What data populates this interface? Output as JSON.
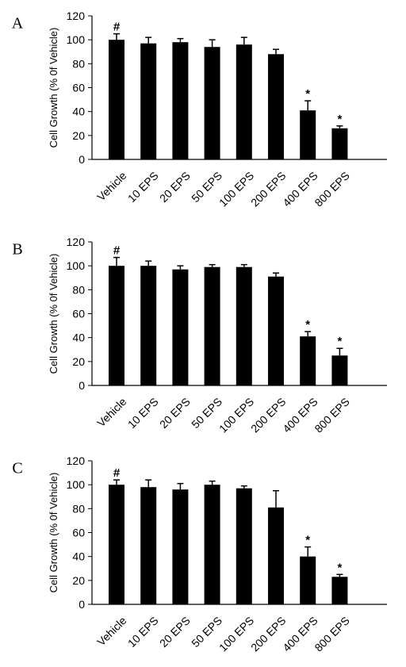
{
  "chart_data": [
    {
      "type": "bar",
      "panel": "A",
      "categories": [
        "Vehicle",
        "10 EPS",
        "20 EPS",
        "50 EPS",
        "100 EPS",
        "200 EPS",
        "400 EPS",
        "800 EPS"
      ],
      "series": [
        {
          "values": [
            100,
            97,
            98,
            94,
            96,
            88,
            41,
            26
          ]
        }
      ],
      "error_upper": [
        5,
        5,
        3,
        6,
        6,
        4,
        8,
        2
      ],
      "annotations": [
        "#",
        "",
        "",
        "",
        "",
        "",
        "*",
        "*"
      ],
      "ylabel": "Cell Growth (% 0f Vehicle)",
      "ylim": [
        0,
        120
      ],
      "yticks": [
        0,
        20,
        40,
        60,
        80,
        100,
        120
      ],
      "color": "#000000",
      "grid": false,
      "legend": "none"
    },
    {
      "type": "bar",
      "panel": "B",
      "categories": [
        "Vehicle",
        "10 EPS",
        "20 EPS",
        "50 EPS",
        "100 EPS",
        "200 EPS",
        "400 EPS",
        "800 EPS"
      ],
      "series": [
        {
          "values": [
            100,
            100,
            97,
            99,
            99,
            91,
            41,
            25
          ]
        }
      ],
      "error_upper": [
        7,
        4,
        3,
        2,
        2,
        3,
        4,
        6
      ],
      "annotations": [
        "#",
        "",
        "",
        "",
        "",
        "",
        "*",
        "*"
      ],
      "ylabel": "Cell Growth (% 0f Vehicle)",
      "ylim": [
        0,
        120
      ],
      "yticks": [
        0,
        20,
        40,
        60,
        80,
        100,
        120
      ],
      "color": "#000000",
      "grid": false,
      "legend": "none"
    },
    {
      "type": "bar",
      "panel": "C",
      "categories": [
        "Vehicle",
        "10 EPS",
        "20 EPS",
        "50 EPS",
        "100 EPS",
        "200 EPS",
        "400 EPS",
        "800 EPS"
      ],
      "series": [
        {
          "values": [
            100,
            98,
            96,
            100,
            97,
            81,
            40,
            23
          ]
        }
      ],
      "error_upper": [
        4,
        6,
        5,
        3,
        2,
        14,
        8,
        2
      ],
      "annotations": [
        "#",
        "",
        "",
        "",
        "",
        "",
        "*",
        "*"
      ],
      "ylabel": "Cell Growth (% 0f Vehicle)",
      "ylim": [
        0,
        120
      ],
      "yticks": [
        0,
        20,
        40,
        60,
        80,
        100,
        120
      ],
      "color": "#000000",
      "grid": false,
      "legend": "none"
    }
  ]
}
